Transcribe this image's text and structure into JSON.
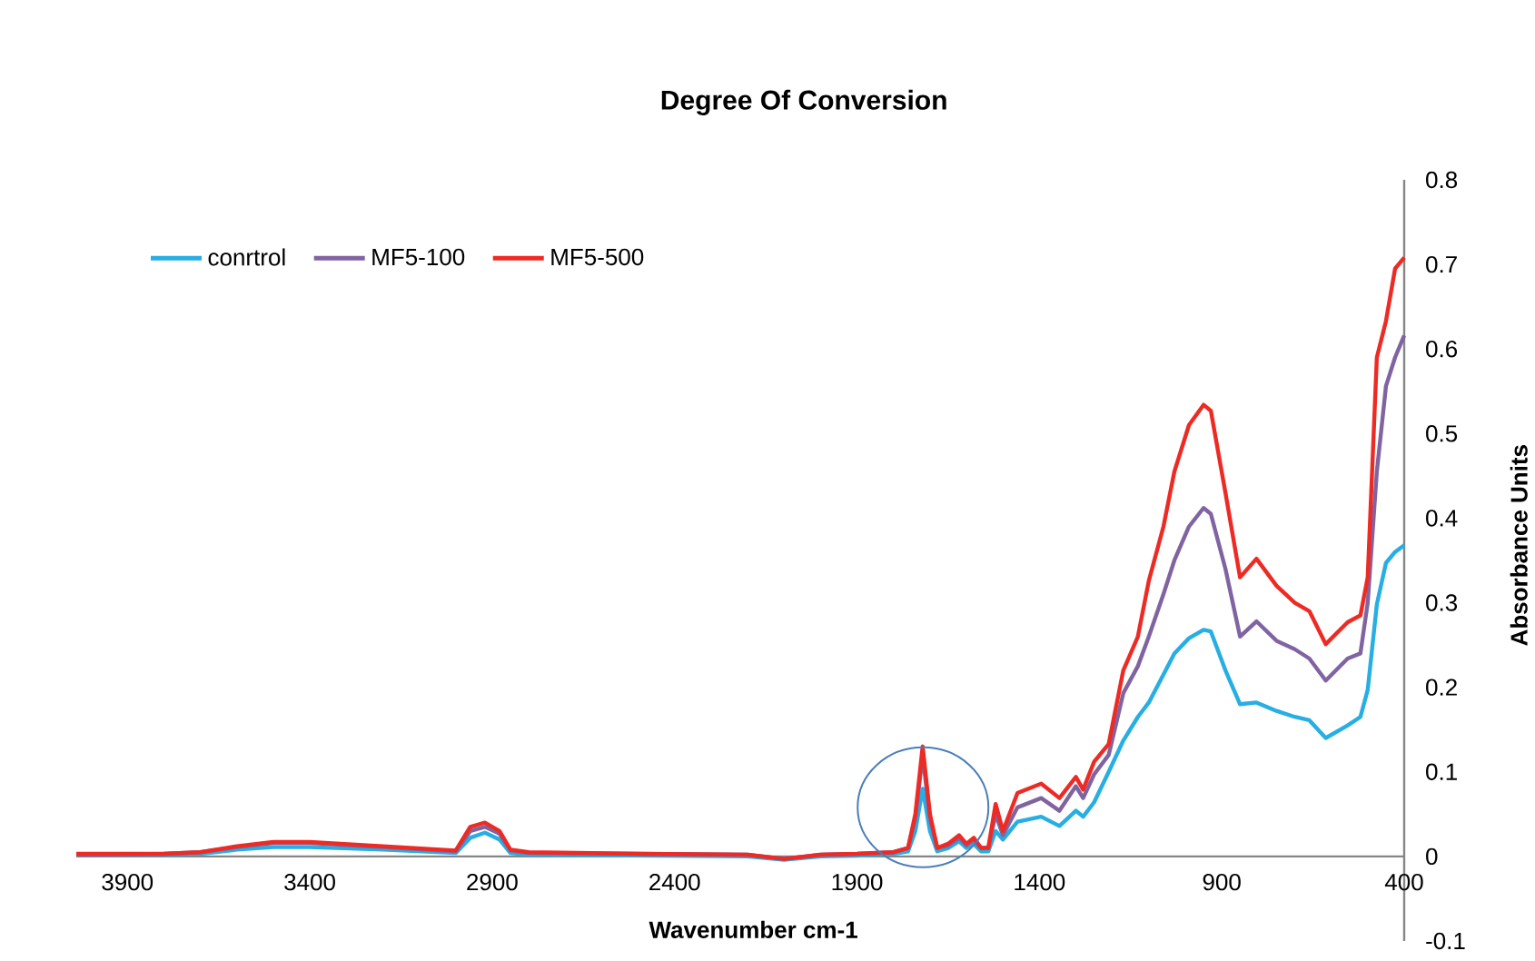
{
  "chart_data": {
    "type": "line",
    "title": "Degree Of Conversion",
    "xlabel": "Wavenumber  cm-1",
    "ylabel": "Absorbance Units",
    "x": [
      4040,
      3800,
      3700,
      3600,
      3500,
      3400,
      3200,
      3000,
      2960,
      2920,
      2880,
      2850,
      2800,
      2500,
      2200,
      2100,
      2000,
      1900,
      1800,
      1760,
      1740,
      1720,
      1700,
      1680,
      1650,
      1620,
      1600,
      1580,
      1560,
      1540,
      1520,
      1500,
      1460,
      1395,
      1345,
      1300,
      1280,
      1250,
      1210,
      1170,
      1130,
      1100,
      1060,
      1030,
      990,
      950,
      930,
      890,
      850,
      805,
      750,
      700,
      660,
      615,
      555,
      520,
      500,
      475,
      450,
      425,
      400
    ],
    "series": [
      {
        "name": "conrtrol",
        "color": "#27aee3",
        "values": [
          0.002,
          0.002,
          0.003,
          0.008,
          0.011,
          0.011,
          0.008,
          0.004,
          0.022,
          0.028,
          0.02,
          0.004,
          0.002,
          0.001,
          0.0,
          -0.004,
          0.0,
          0.001,
          0.003,
          0.006,
          0.03,
          0.08,
          0.03,
          0.006,
          0.01,
          0.018,
          0.01,
          0.015,
          0.006,
          0.006,
          0.03,
          0.02,
          0.041,
          0.047,
          0.036,
          0.054,
          0.047,
          0.064,
          0.1,
          0.137,
          0.165,
          0.182,
          0.215,
          0.24,
          0.258,
          0.268,
          0.266,
          0.22,
          0.18,
          0.182,
          0.172,
          0.165,
          0.161,
          0.14,
          0.155,
          0.165,
          0.197,
          0.298,
          0.347,
          0.36,
          0.368
        ]
      },
      {
        "name": "MF5-100",
        "color": "#8064a2",
        "values": [
          0.002,
          0.003,
          0.005,
          0.011,
          0.016,
          0.016,
          0.011,
          0.006,
          0.03,
          0.035,
          0.027,
          0.007,
          0.004,
          0.003,
          0.002,
          -0.003,
          0.002,
          0.003,
          0.005,
          0.01,
          0.045,
          0.12,
          0.045,
          0.01,
          0.013,
          0.022,
          0.013,
          0.02,
          0.01,
          0.01,
          0.05,
          0.025,
          0.058,
          0.069,
          0.054,
          0.083,
          0.069,
          0.097,
          0.12,
          0.193,
          0.225,
          0.26,
          0.31,
          0.35,
          0.39,
          0.412,
          0.405,
          0.34,
          0.26,
          0.278,
          0.255,
          0.245,
          0.234,
          0.208,
          0.234,
          0.24,
          0.3,
          0.455,
          0.556,
          0.59,
          0.616
        ]
      },
      {
        "name": "MF5-500",
        "color": "#ee2a24",
        "values": [
          0.003,
          0.003,
          0.005,
          0.012,
          0.017,
          0.017,
          0.012,
          0.007,
          0.035,
          0.04,
          0.03,
          0.008,
          0.005,
          0.003,
          0.002,
          -0.003,
          0.002,
          0.003,
          0.005,
          0.01,
          0.05,
          0.13,
          0.05,
          0.01,
          0.015,
          0.025,
          0.015,
          0.022,
          0.01,
          0.01,
          0.062,
          0.03,
          0.075,
          0.086,
          0.069,
          0.094,
          0.079,
          0.112,
          0.133,
          0.22,
          0.26,
          0.326,
          0.39,
          0.455,
          0.51,
          0.534,
          0.527,
          0.43,
          0.33,
          0.352,
          0.32,
          0.3,
          0.29,
          0.251,
          0.277,
          0.285,
          0.33,
          0.59,
          0.633,
          0.695,
          0.708
        ]
      }
    ],
    "xlim": [
      4040,
      400
    ],
    "ylim": [
      -0.1,
      0.8
    ],
    "xticks": [
      3900,
      3400,
      2900,
      2400,
      1900,
      1400,
      900,
      400
    ],
    "yticks": [
      -0.1,
      0,
      0.1,
      0.2,
      0.3,
      0.4,
      0.5,
      0.6,
      0.7,
      0.8
    ],
    "legend": "top left"
  }
}
